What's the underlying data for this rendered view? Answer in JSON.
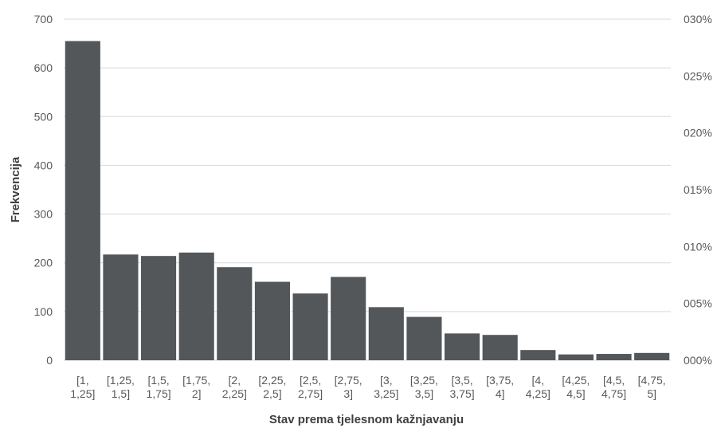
{
  "chart_data": {
    "type": "bar",
    "xlabel": "Stav prema tjelesnom kažnjavanju",
    "ylabel": "Frekvencija",
    "ylim": [
      0,
      700
    ],
    "y_ticks": [
      "0",
      "100",
      "200",
      "300",
      "400",
      "500",
      "600",
      "700"
    ],
    "y2lim": [
      0,
      0.03
    ],
    "y2_ticks": [
      "000%",
      "005%",
      "010%",
      "015%",
      "020%",
      "025%",
      "030%"
    ],
    "categories": [
      [
        "[1,",
        "1,25]"
      ],
      [
        "[1,25,",
        "1,5]"
      ],
      [
        "[1,5,",
        "1,75]"
      ],
      [
        "[1,75,",
        "2]"
      ],
      [
        "[2,",
        "2,25]"
      ],
      [
        "[2,25,",
        "2,5]"
      ],
      [
        "[2,5,",
        "2,75]"
      ],
      [
        "[2,75,",
        "3]"
      ],
      [
        "[3,",
        "3,25]"
      ],
      [
        "[3,25,",
        "3,5]"
      ],
      [
        "[3,5,",
        "3,75]"
      ],
      [
        "[3,75,",
        "4]"
      ],
      [
        "[4,",
        "4,25]"
      ],
      [
        "[4,25,",
        "4,5]"
      ],
      [
        "[4,5,",
        "4,75]"
      ],
      [
        "[4,75,",
        "5]"
      ]
    ],
    "values": [
      655,
      217,
      214,
      221,
      191,
      161,
      137,
      171,
      109,
      89,
      55,
      52,
      21,
      12,
      13,
      15
    ],
    "grid": true,
    "bar_color": "#54575a",
    "grid_color": "#d9d9d9"
  }
}
